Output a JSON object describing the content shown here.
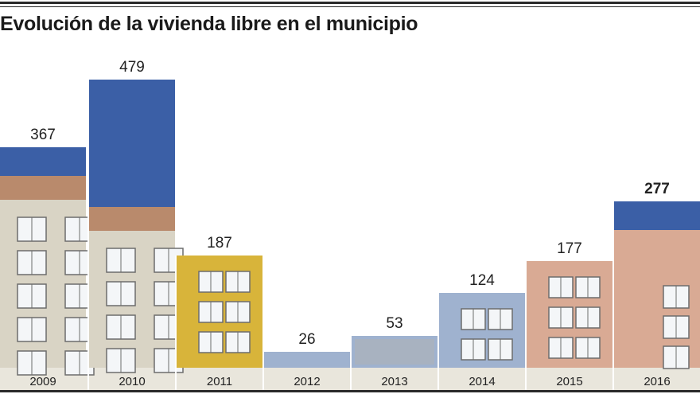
{
  "title": "Evolución de la vivienda libre en el municipio",
  "chart_data": {
    "type": "bar",
    "title": "Evolución de la vivienda libre en el municipio",
    "categories": [
      "2009",
      "2010",
      "2011",
      "2012",
      "2013",
      "2014",
      "2015",
      "2016"
    ],
    "values": [
      367,
      479,
      187,
      26,
      53,
      124,
      177,
      277
    ],
    "value_labels": [
      "367",
      "479",
      "187",
      "26",
      "53",
      "124",
      "177",
      "277"
    ],
    "highlight_index": 7,
    "xlabel": "",
    "ylabel": "",
    "ylim": [
      0,
      479
    ],
    "grid": false,
    "colors": {
      "bar_sky": "#3b5fa6",
      "facade_light": "#d9d4c5",
      "facade_shadow": "#b9b3a2",
      "brick": "#b98a6c",
      "yellow": "#d8b43a",
      "pink": "#d9aa94",
      "blue_glass": "#9fb2cf",
      "window": "#f4f6f8",
      "window_frame": "#6d6d6d",
      "ground": "#e9e6dc",
      "label": "#222222"
    }
  }
}
